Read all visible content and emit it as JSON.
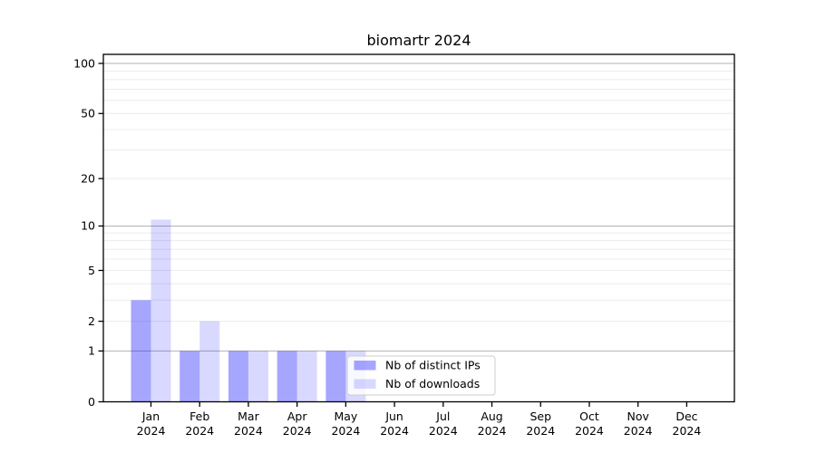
{
  "title": "biomartr 2024",
  "colors": {
    "bar_ips": "rgba(0,0,255,0.35)",
    "bar_downloads": "rgba(0,0,255,0.15)",
    "grid_major": "#b3b3b3",
    "grid_minor": "#ececec",
    "axis_line": "#000000",
    "legend_border": "#cccccc",
    "legend_bg": "rgba(255,255,255,0.8)",
    "text": "#000000"
  },
  "chart_data": {
    "type": "bar",
    "title": "biomartr 2024",
    "xlabel": "",
    "ylabel": "",
    "categories": [
      "Jan 2024",
      "Feb 2024",
      "Mar 2024",
      "Apr 2024",
      "May 2024",
      "Jun 2024",
      "Jul 2024",
      "Aug 2024",
      "Sep 2024",
      "Oct 2024",
      "Nov 2024",
      "Dec 2024"
    ],
    "series": [
      {
        "name": "Nb of distinct IPs",
        "values": [
          3,
          1,
          1,
          1,
          1,
          0,
          0,
          0,
          0,
          0,
          0,
          0
        ]
      },
      {
        "name": "Nb of downloads",
        "values": [
          11,
          2,
          1,
          1,
          1,
          0,
          0,
          0,
          0,
          0,
          0,
          0
        ]
      }
    ],
    "y_scale": "log1p",
    "ylim": [
      0,
      100
    ],
    "y_ticks": [
      0,
      1,
      2,
      5,
      10,
      20,
      50,
      100
    ],
    "y_major_gridlines": [
      1,
      10,
      100
    ],
    "y_minor_gridlines": [
      2,
      3,
      4,
      5,
      6,
      7,
      8,
      9,
      20,
      30,
      40,
      50,
      60,
      70,
      80,
      90
    ],
    "grid": true,
    "legend": {
      "entries": [
        "Nb of distinct IPs",
        "Nb of downloads"
      ],
      "position": "inside-bottom-center-left"
    }
  }
}
